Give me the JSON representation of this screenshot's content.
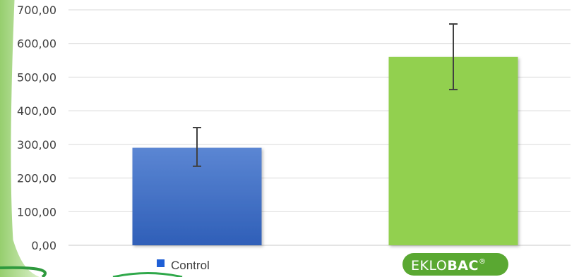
{
  "chart_data": {
    "type": "bar",
    "categories": [
      "Control",
      "EKLOBAC"
    ],
    "values": [
      290,
      560
    ],
    "error_upper": [
      350,
      658
    ],
    "error_lower": [
      235,
      463
    ],
    "colors": [
      "#3f6fc6",
      "#92d050"
    ],
    "ylim": [
      0,
      700
    ],
    "yticks": [
      0,
      100,
      200,
      300,
      400,
      500,
      600,
      700
    ],
    "ytick_labels": [
      "0,00",
      "100,00",
      "200,00",
      "300,00",
      "400,00",
      "500,00",
      "600,00",
      "700,00"
    ],
    "grid": true,
    "legend": {
      "control_label": "Control",
      "control_color": "#1f5fd6",
      "brand_logo": {
        "text_light": "EKLO",
        "text_bold": "BAC",
        "mark": "®",
        "color": "#5aa832"
      }
    }
  }
}
